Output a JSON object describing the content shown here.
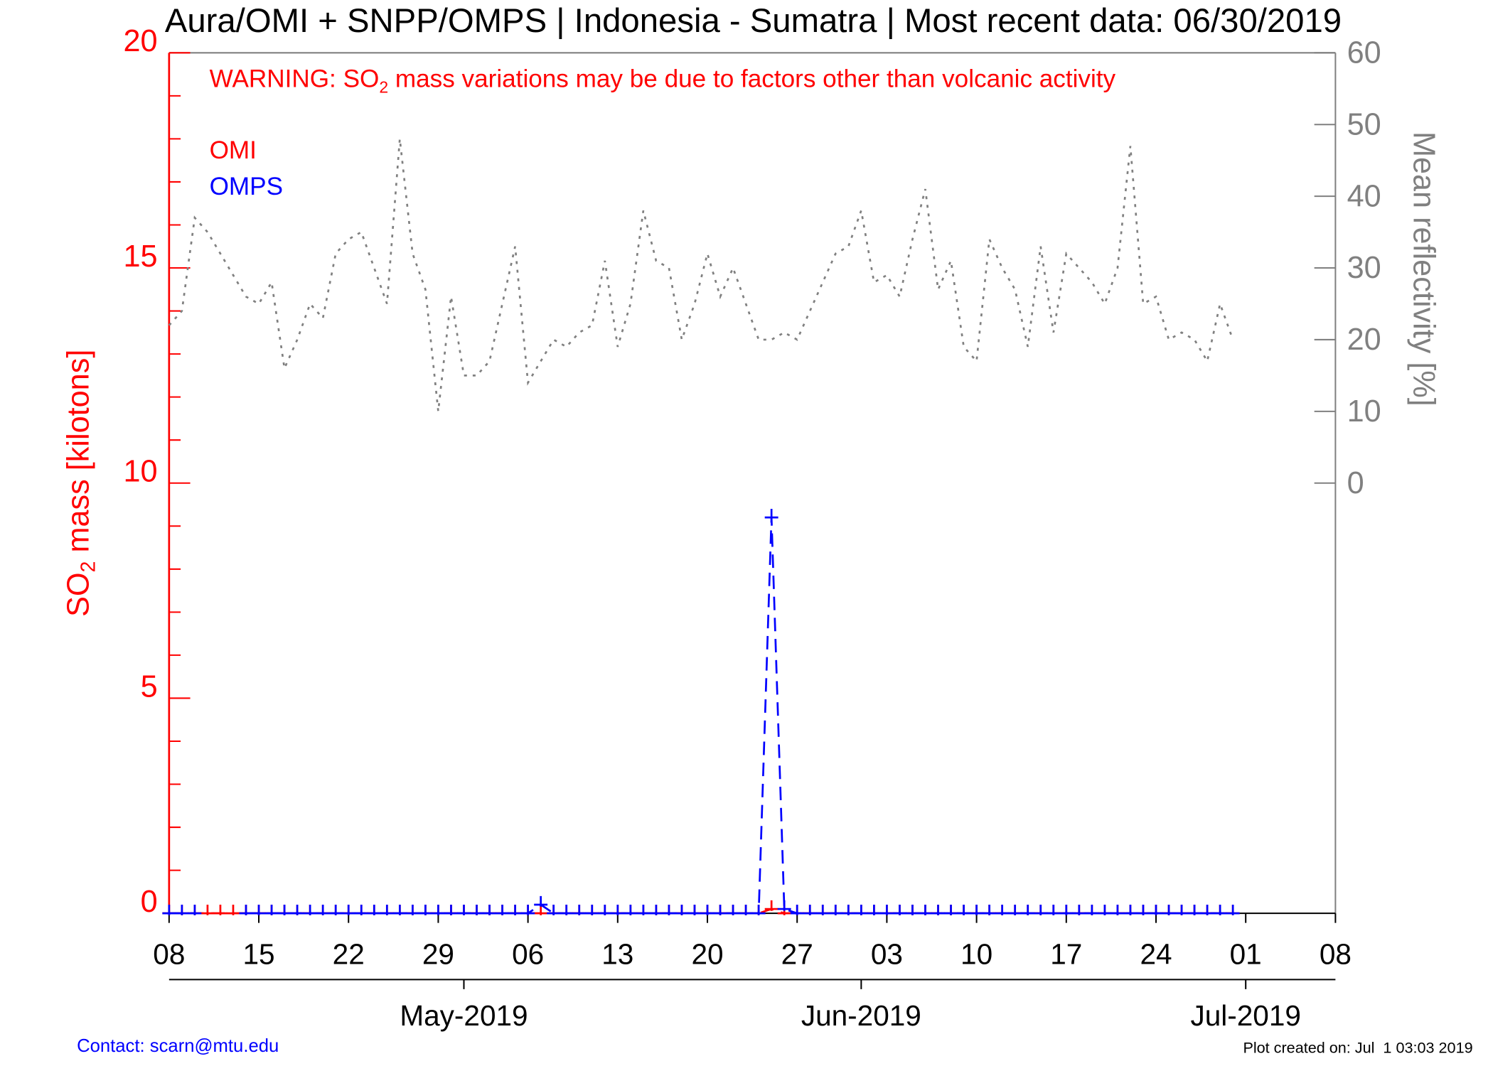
{
  "chart_data": {
    "type": "line",
    "title": "Aura/OMI + SNPP/OMPS | Indonesia - Sumatra | Most recent data: 06/30/2019",
    "warning": [
      "WARNING: SO",
      "2",
      " mass variations may be due to factors other than volcanic activity"
    ],
    "y_label": [
      "SO",
      "2",
      " mass [kilotons]"
    ],
    "y2_label": "Mean reflectivity [%]",
    "contact": "Contact: scarn@mtu.edu",
    "created": "Plot created on: Jul  1 03:03 2019",
    "x": [
      "2019-04-08",
      "2019-04-09",
      "2019-04-10",
      "2019-04-11",
      "2019-04-12",
      "2019-04-13",
      "2019-04-14",
      "2019-04-15",
      "2019-04-16",
      "2019-04-17",
      "2019-04-18",
      "2019-04-19",
      "2019-04-20",
      "2019-04-21",
      "2019-04-22",
      "2019-04-23",
      "2019-04-24",
      "2019-04-25",
      "2019-04-26",
      "2019-04-27",
      "2019-04-28",
      "2019-04-29",
      "2019-04-30",
      "2019-05-01",
      "2019-05-02",
      "2019-05-03",
      "2019-05-04",
      "2019-05-05",
      "2019-05-06",
      "2019-05-07",
      "2019-05-08",
      "2019-05-09",
      "2019-05-10",
      "2019-05-11",
      "2019-05-12",
      "2019-05-13",
      "2019-05-14",
      "2019-05-15",
      "2019-05-16",
      "2019-05-17",
      "2019-05-18",
      "2019-05-19",
      "2019-05-20",
      "2019-05-21",
      "2019-05-22",
      "2019-05-23",
      "2019-05-24",
      "2019-05-25",
      "2019-05-26",
      "2019-05-27",
      "2019-05-28",
      "2019-05-29",
      "2019-05-30",
      "2019-05-31",
      "2019-06-01",
      "2019-06-02",
      "2019-06-03",
      "2019-06-04",
      "2019-06-05",
      "2019-06-06",
      "2019-06-07",
      "2019-06-08",
      "2019-06-09",
      "2019-06-10",
      "2019-06-11",
      "2019-06-12",
      "2019-06-13",
      "2019-06-14",
      "2019-06-15",
      "2019-06-16",
      "2019-06-17",
      "2019-06-18",
      "2019-06-19",
      "2019-06-20",
      "2019-06-21",
      "2019-06-22",
      "2019-06-23",
      "2019-06-24",
      "2019-06-25",
      "2019-06-26",
      "2019-06-27",
      "2019-06-28",
      "2019-06-29",
      "2019-06-30"
    ],
    "series": [
      {
        "name": "Mean reflectivity",
        "color": "#808080",
        "axis": "y2",
        "line_style": "dotted",
        "values": [
          22,
          24,
          37,
          35,
          32,
          29,
          26,
          25,
          28,
          16,
          20,
          25,
          23,
          32,
          34,
          35,
          30,
          25,
          48,
          32,
          27,
          10,
          26,
          15,
          15,
          17,
          25,
          33,
          14,
          17,
          20,
          19,
          21,
          22,
          31,
          19,
          25,
          38,
          31,
          30,
          20,
          25,
          32,
          26,
          30,
          25,
          20,
          20,
          21,
          20,
          24,
          28,
          32,
          33,
          38,
          28,
          29,
          26,
          34,
          41,
          27,
          31,
          19,
          17,
          34,
          30,
          27,
          19,
          33,
          21,
          32,
          30,
          28,
          25,
          30,
          47,
          25,
          26,
          20,
          21,
          20,
          17,
          25,
          20
        ]
      },
      {
        "name": "OMI",
        "color": "#ff0000",
        "line_style": "dashed",
        "marker": "plus",
        "values": [
          0,
          0,
          0,
          0,
          0,
          0,
          0,
          0,
          0,
          0,
          0,
          0,
          0,
          0,
          0,
          0,
          0,
          0,
          0,
          0,
          0,
          0,
          0,
          0,
          0,
          0,
          0,
          0,
          0,
          0,
          0,
          0,
          0,
          0,
          0,
          0,
          0,
          0,
          0,
          0,
          0,
          0,
          0,
          0,
          0,
          0,
          0,
          0.1,
          0,
          0,
          0,
          0,
          0,
          0,
          0,
          0,
          0,
          0,
          0,
          0,
          0,
          0,
          0,
          0,
          0,
          0,
          0,
          0,
          0,
          0,
          0,
          0,
          0,
          0,
          0,
          0,
          0,
          0,
          0,
          0,
          0,
          0,
          0,
          0
        ]
      },
      {
        "name": "OMPS",
        "color": "#0000ff",
        "line_style": "dashed",
        "marker": "plus",
        "values": [
          0,
          0,
          0,
          null,
          null,
          null,
          0,
          0,
          0,
          0,
          0,
          0,
          0,
          0,
          0,
          0,
          0,
          0,
          0,
          0,
          0,
          0,
          0,
          0,
          0,
          0,
          0,
          0,
          0,
          0.2,
          0,
          0,
          0,
          0,
          0,
          0,
          0,
          0,
          0,
          0,
          0,
          0,
          0,
          0,
          0,
          0,
          0,
          9.2,
          0.1,
          0,
          0,
          0,
          0,
          0,
          0,
          0,
          0,
          0,
          0,
          0,
          0,
          0,
          0,
          0,
          0,
          0,
          0,
          0,
          0,
          0,
          0,
          0,
          0,
          0,
          0,
          0,
          0,
          0,
          0,
          0,
          0,
          0,
          0,
          0
        ]
      }
    ],
    "legend": [
      "OMI",
      "OMPS"
    ],
    "xlim": [
      "2019-04-08",
      "2019-07-08"
    ],
    "xticks": [
      {
        "value": "2019-04-08",
        "label": "08"
      },
      {
        "value": "2019-04-15",
        "label": "15"
      },
      {
        "value": "2019-04-22",
        "label": "22"
      },
      {
        "value": "2019-04-29",
        "label": "29"
      },
      {
        "value": "2019-05-06",
        "label": "06"
      },
      {
        "value": "2019-05-13",
        "label": "13"
      },
      {
        "value": "2019-05-20",
        "label": "20"
      },
      {
        "value": "2019-05-27",
        "label": "27"
      },
      {
        "value": "2019-06-03",
        "label": "03"
      },
      {
        "value": "2019-06-10",
        "label": "10"
      },
      {
        "value": "2019-06-17",
        "label": "17"
      },
      {
        "value": "2019-06-24",
        "label": "24"
      },
      {
        "value": "2019-07-01",
        "label": "01"
      },
      {
        "value": "2019-07-08",
        "label": "08"
      }
    ],
    "month_ticks": [
      {
        "value": "2019-05-01",
        "label": "May-2019"
      },
      {
        "value": "2019-06-01",
        "label": "Jun-2019"
      },
      {
        "value": "2019-07-01",
        "label": "Jul-2019"
      }
    ],
    "ylim": [
      0,
      20
    ],
    "yticks": [
      0,
      5,
      10,
      15,
      20
    ],
    "y2lim": [
      -60,
      60
    ],
    "y2ticks": [
      0,
      10,
      20,
      30,
      40,
      50,
      60
    ]
  }
}
